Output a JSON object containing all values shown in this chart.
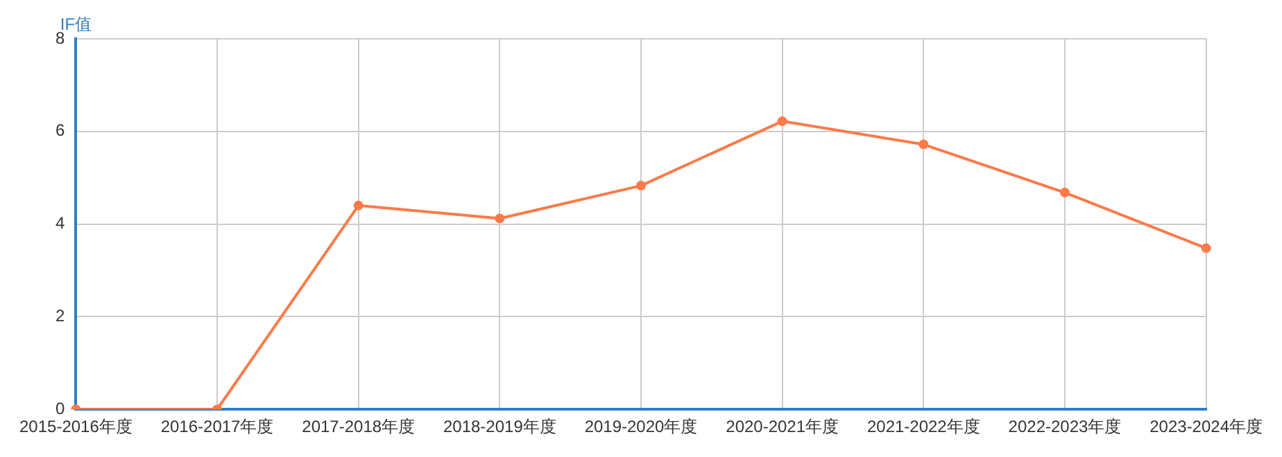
{
  "chart_data": {
    "type": "line",
    "ylabel": "IF值",
    "categories": [
      "2015-2016年度",
      "2016-2017年度",
      "2017-2018年度",
      "2018-2019年度",
      "2019-2020年度",
      "2020-2021年度",
      "2021-2022年度",
      "2022-2023年度",
      "2023-2024年度"
    ],
    "series": [
      {
        "color": "#fc7a48",
        "values": [
          0,
          0,
          4.4,
          4.12,
          4.83,
          6.22,
          5.72,
          4.68,
          3.48
        ]
      }
    ],
    "ylim": [
      0,
      8
    ],
    "yticks": [
      0,
      2,
      4,
      6,
      8
    ],
    "grid": true,
    "legend": false,
    "marker": "circle",
    "line_style": "solid"
  }
}
